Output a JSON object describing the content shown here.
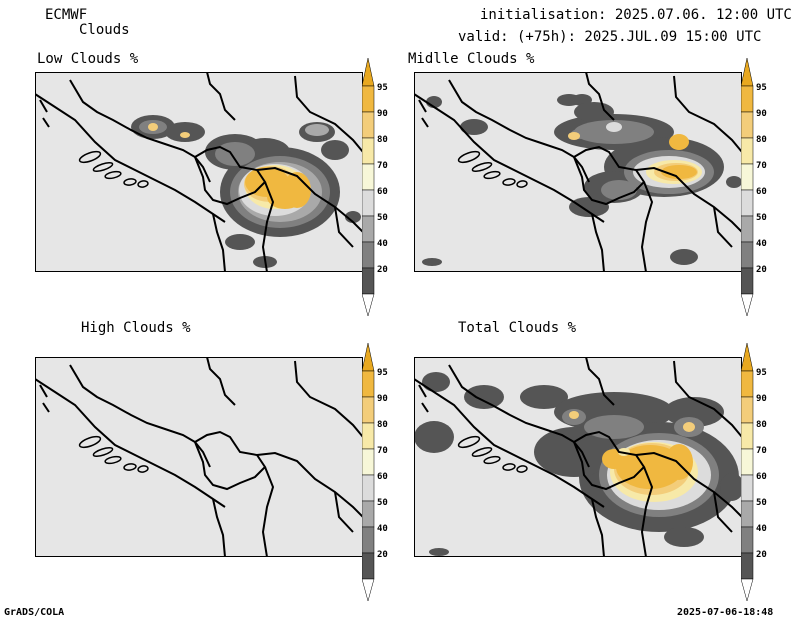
{
  "header": {
    "model": "ECMWF",
    "product": "Clouds",
    "init": "initialisation: 2025.07.06. 12:00 UTC",
    "valid": "valid: (+75h): 2025.JUL.09 15:00 UTC"
  },
  "panels": [
    {
      "title": "Low Clouds %"
    },
    {
      "title": "Midlle Clouds %"
    },
    {
      "title": "High Clouds %"
    },
    {
      "title": "Total Clouds %"
    }
  ],
  "colorbar": {
    "labels": [
      "95",
      "90",
      "80",
      "70",
      "60",
      "50",
      "40",
      "20"
    ],
    "colors": {
      "gt95": "#e8a820",
      "c95": "#f0b840",
      "c90": "#f3cd7a",
      "c80": "#f7e9a8",
      "c70": "#f7f7d8",
      "c60": "#dcdcdc",
      "c50": "#a9a9a9",
      "c40": "#808080",
      "c20": "#555555",
      "lt20": "#ffffff"
    }
  },
  "map_colors": {
    "background": "#e6e6e6",
    "border": "#000000"
  },
  "footer": {
    "left": "GrADS/COLA",
    "right": "2025-07-06-18:48"
  }
}
